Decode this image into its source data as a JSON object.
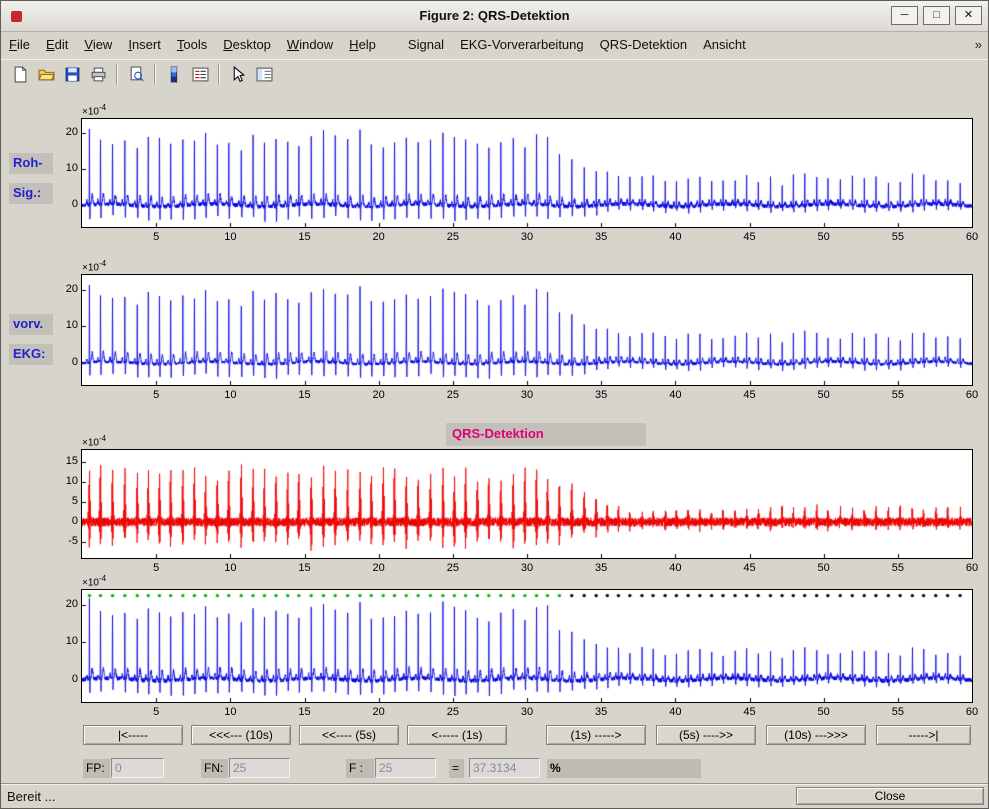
{
  "window": {
    "title": "Figure 2: QRS-Detektion",
    "minimize_glyph": "─",
    "maximize_glyph": "□",
    "close_glyph": "✕"
  },
  "menu": {
    "items": [
      {
        "label": "File",
        "underline": 0
      },
      {
        "label": "Edit",
        "underline": 0
      },
      {
        "label": "View",
        "underline": 0
      },
      {
        "label": "Insert",
        "underline": 0
      },
      {
        "label": "Tools",
        "underline": 0
      },
      {
        "label": "Desktop",
        "underline": 0
      },
      {
        "label": "Window",
        "underline": 0
      },
      {
        "label": "Help",
        "underline": 0
      },
      {
        "label": "Signal",
        "underline": null
      },
      {
        "label": "EKG-Vorverarbeitung",
        "underline": null
      },
      {
        "label": "QRS-Detektion",
        "underline": null
      },
      {
        "label": "Ansicht",
        "underline": null
      }
    ],
    "overflow_glyph": "»"
  },
  "toolbar": {
    "groups": [
      [
        "new-file-icon",
        "open-icon",
        "save-icon",
        "print-icon"
      ],
      [
        "print-preview-icon"
      ],
      [
        "colorbar-icon",
        "insert-legend-icon"
      ],
      [
        "edit-plot-icon",
        "plot-browser-icon"
      ]
    ]
  },
  "axes": {
    "exp_base": "×10",
    "exp_exp": "-4"
  },
  "plots": [
    {
      "name": "raw-signal",
      "side_labels": [
        "Roh-",
        "Sig.:"
      ],
      "ylim": [
        -6,
        24
      ],
      "yticks": [
        20,
        10,
        0
      ],
      "xticks": [
        5,
        10,
        15,
        20,
        25,
        30,
        35,
        40,
        45,
        50,
        55,
        60
      ],
      "line_color": "#0000dd",
      "kind": "ecg"
    },
    {
      "name": "preprocessed-ecg",
      "side_labels": [
        "vorv.",
        "EKG:"
      ],
      "ylim": [
        -6,
        24
      ],
      "yticks": [
        20,
        10,
        0
      ],
      "xticks": [
        5,
        10,
        15,
        20,
        25,
        30,
        35,
        40,
        45,
        50,
        55,
        60
      ],
      "line_color": "#0000dd",
      "kind": "ecg"
    },
    {
      "name": "qrs-detection",
      "title": "QRS-Detektion",
      "title_color": "#dd0077",
      "ylim": [
        -9,
        18
      ],
      "yticks": [
        15,
        10,
        5,
        0,
        -5
      ],
      "xticks": [
        5,
        10,
        15,
        20,
        25,
        30,
        35,
        40,
        45,
        50,
        55,
        60
      ],
      "line_color": "#ee0000",
      "kind": "filtered"
    },
    {
      "name": "detected-beats",
      "ylim": [
        -6,
        24
      ],
      "yticks": [
        20,
        10,
        0
      ],
      "xticks": [
        5,
        10,
        15,
        20,
        25,
        30,
        35,
        40,
        45,
        50,
        55,
        60
      ],
      "line_color": "#0000dd",
      "kind": "ecg",
      "markers": {
        "detected_color": "#00b400",
        "missed_color": "#000000",
        "switch_t": 33,
        "y_value": 22.5
      }
    }
  ],
  "nav": {
    "buttons": [
      {
        "label": "|<-----",
        "name": "first"
      },
      {
        "label": "<<<--- (10s)",
        "name": "back-10s"
      },
      {
        "label": "<<---- (5s)",
        "name": "back-5s"
      },
      {
        "label": "<----- (1s)",
        "name": "back-1s"
      },
      {
        "label": "(1s) ----->",
        "name": "fwd-1s"
      },
      {
        "label": "(5s) ---->>",
        "name": "fwd-5s"
      },
      {
        "label": "(10s) --->>>",
        "name": "fwd-10s"
      },
      {
        "label": "----->|",
        "name": "last"
      }
    ]
  },
  "stats": {
    "fp_label": "FP:",
    "fp_value": "0",
    "fn_label": "FN:",
    "fn_value": "25",
    "f_label": "F :",
    "f_value": "25",
    "equals": "=",
    "result_value": "37.3134",
    "percent": "%"
  },
  "status": {
    "text": "Bereit ...",
    "close_label": "Close"
  }
}
